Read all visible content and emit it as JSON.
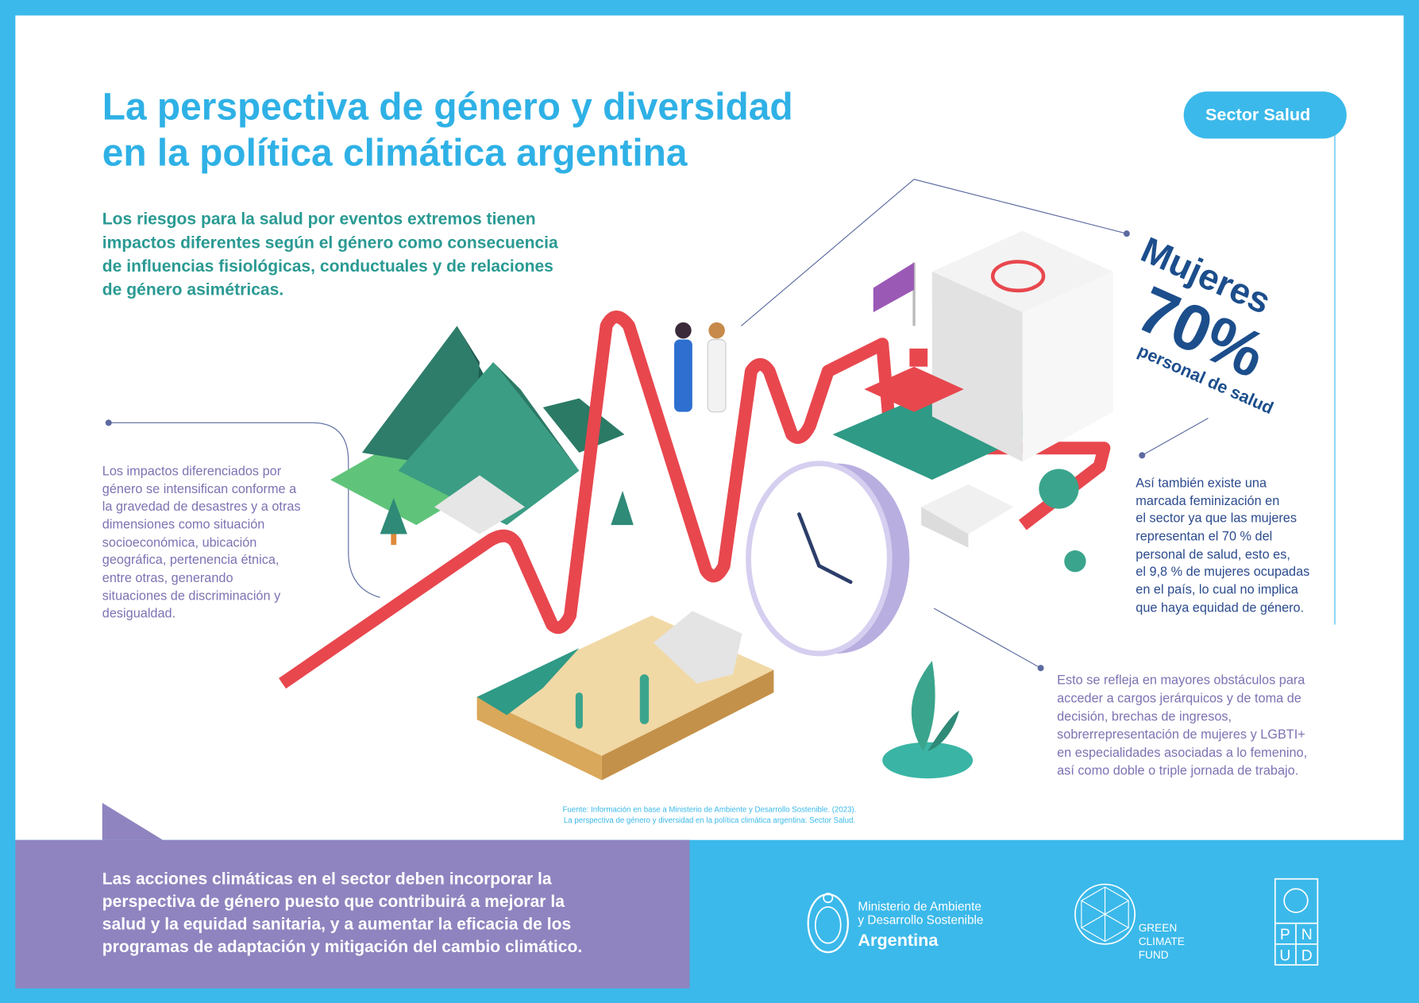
{
  "header": {
    "title": [
      "La perspectiva de género y diversidad",
      "en la política climática argentina"
    ],
    "tag": "Sector Salud"
  },
  "intro": [
    "Los riesgos para la salud por eventos extremos tienen",
    "impactos diferentes según el género como consecuencia",
    "de influencias fisiológicas, conductuales y de relaciones",
    "de género asimétricas."
  ],
  "left_text": [
    "Los impactos diferenciados por",
    "género se intensifican conforme a",
    "la gravedad de desastres y a otras",
    "dimensiones como situación",
    "socioeconómica, ubicación",
    "geográfica, pertenencia étnica,",
    "entre otras, generando",
    "situaciones de discriminación y",
    "desigualdad."
  ],
  "stat": {
    "label": "Mujeres",
    "value": "70%",
    "caption": "personal de salud"
  },
  "right_text": [
    "Así también existe una",
    "marcada feminización en",
    "el sector ya que las mujeres",
    "representan el 70 % del",
    "personal de salud, esto es,",
    "el 9,8 % de mujeres ocupadas",
    "en el país, lo cual no implica",
    "que haya  equidad de género."
  ],
  "bottom_right_text": [
    "Esto se refleja en mayores obstáculos para",
    "acceder a cargos jerárquicos y de toma de",
    "decisión, brechas de ingresos,",
    "sobrerrepresentación de mujeres y LGBTI+",
    "en especialidades asociadas a lo femenino,",
    "así como doble o triple jornada de trabajo."
  ],
  "source": [
    "Fuente: Información en base a Ministerio de Ambiente y Desarrollo Sostenible. (2023).",
    "La perspectiva de género y diversidad en la política climática argentina: Sector Salud."
  ],
  "footer": {
    "message": [
      "Las acciones climáticas en el sector deben incorporar la",
      "perspectiva de género puesto que contribuirá a mejorar la",
      "salud y la equidad sanitaria, y a aumentar la eficacia de los",
      "programas de adaptación y mitigación del cambio climático."
    ],
    "ministry": [
      "Ministerio de Ambiente",
      "y Desarrollo Sostenible"
    ],
    "country": "Argentina",
    "gcf": [
      "GREEN",
      "CLIMATE",
      "FUND"
    ],
    "pnud": [
      "P",
      "N",
      "U",
      "D"
    ]
  }
}
